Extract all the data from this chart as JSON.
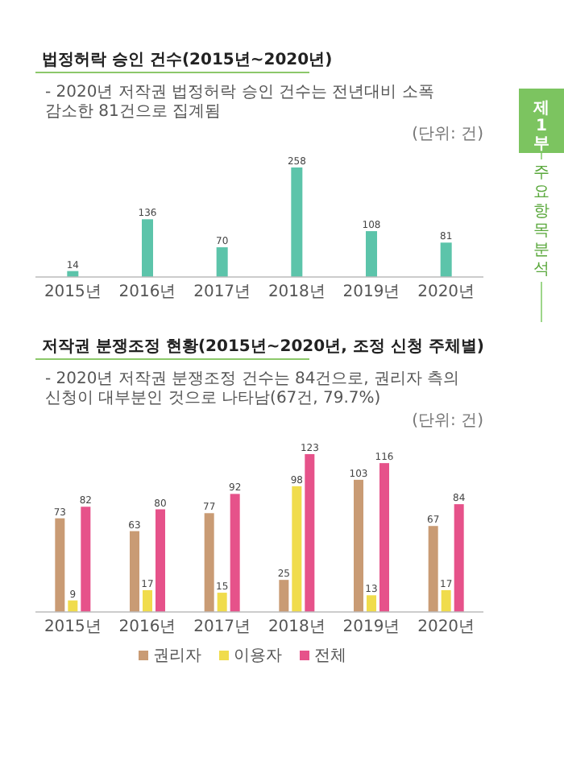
{
  "chart_data": [
    {
      "type": "bar",
      "title": "법정허락 승인 건수(2015년~2020년)",
      "subtitle": "- 2020년 저작권 법정허락 승인 건수는 전년대비 소폭 감소한 81건으로 집계됨",
      "annotations": [
        "(단위: 건)",
        "제1부 주요항목분석"
      ],
      "categories": [
        "2015년",
        "2016년",
        "2017년",
        "2018년",
        "2019년",
        "2020년"
      ],
      "series": [
        {
          "color": "#5cc4aa",
          "values": [
            14,
            136,
            70,
            258,
            108,
            81
          ]
        }
      ],
      "data_labels": true
    },
    {
      "type": "bar",
      "title": "저작권 분쟁조정 현황(2015년~2020년, 조정 신청 주체별)",
      "subtitle": "- 2020년 저작권 분쟁조정 건수는 84건으로, 권리자 측의 신청이 대부분인 것으로 나타남(67건, 79.7%)",
      "annotations": [
        "(단위: 건)"
      ],
      "categories": [
        "2015년",
        "2016년",
        "2017년",
        "2018년",
        "2019년",
        "2020년"
      ],
      "series": [
        {
          "name": "권리자",
          "color": "#c99b74",
          "values": [
            73,
            63,
            77,
            25,
            103,
            67
          ]
        },
        {
          "name": "이용자",
          "color": "#f0dc4c",
          "values": [
            9,
            17,
            15,
            98,
            13,
            17
          ]
        },
        {
          "name": "전체",
          "color": "#e6528a",
          "values": [
            82,
            80,
            92,
            123,
            116,
            84
          ]
        }
      ],
      "data_labels": true,
      "legend": "bottom"
    }
  ]
}
